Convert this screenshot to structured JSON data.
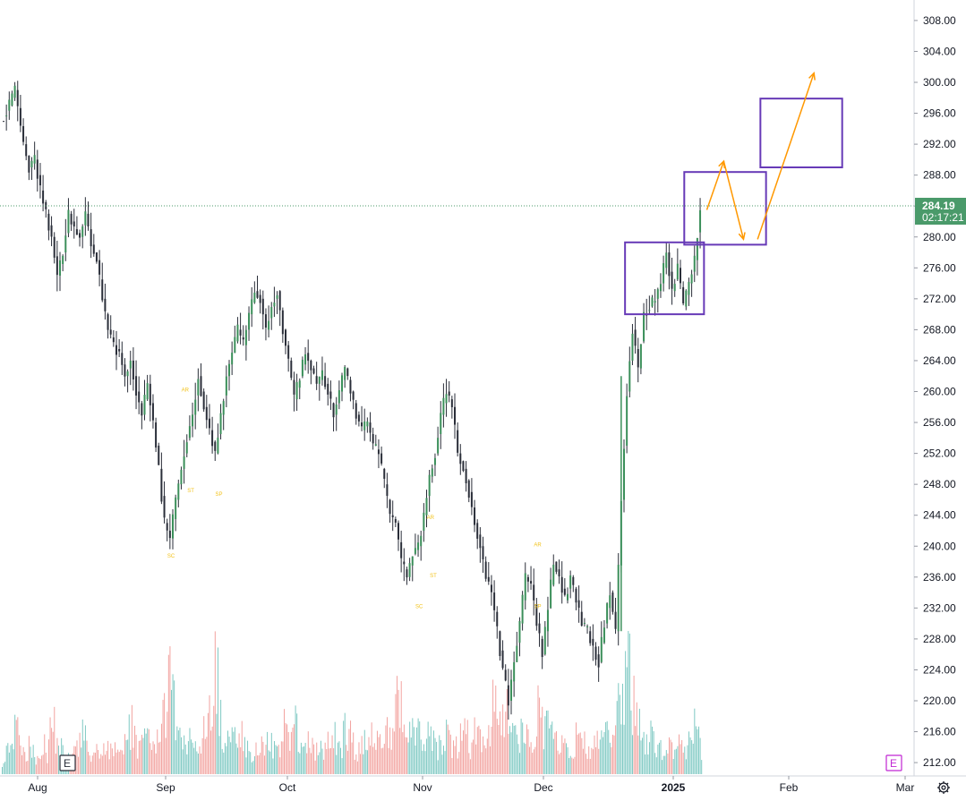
{
  "chart_data": {
    "type": "candlestick",
    "price_axis": {
      "range": [
        210,
        310
      ],
      "ticks": [
        "308.00",
        "304.00",
        "300.00",
        "296.00",
        "292.00",
        "288.00",
        "284.00",
        "280.00",
        "276.00",
        "272.00",
        "268.00",
        "264.00",
        "260.00",
        "256.00",
        "252.00",
        "248.00",
        "244.00",
        "240.00",
        "236.00",
        "232.00",
        "228.00",
        "224.00",
        "220.00",
        "216.00",
        "212.00"
      ],
      "tick_values": [
        308,
        304,
        300,
        296,
        292,
        288,
        284,
        280,
        276,
        272,
        268,
        264,
        260,
        256,
        252,
        248,
        244,
        240,
        236,
        232,
        228,
        224,
        220,
        216,
        212
      ]
    },
    "time_axis": {
      "labels": [
        "Aug",
        "Sep",
        "Oct",
        "Nov",
        "Dec",
        "2025",
        "Feb",
        "Mar"
      ],
      "bold_label": "2025"
    },
    "last_price": {
      "value": 284.19,
      "label": "284.19",
      "countdown": "02:17:21",
      "color": "#4a9a6a"
    },
    "price_series": [
      {
        "t": 0,
        "p": 295
      },
      {
        "t": 3,
        "p": 297
      },
      {
        "t": 5,
        "p": 299
      },
      {
        "t": 8,
        "p": 292
      },
      {
        "t": 10,
        "p": 289
      },
      {
        "t": 12,
        "p": 290
      },
      {
        "t": 14,
        "p": 286
      },
      {
        "t": 16,
        "p": 283
      },
      {
        "t": 18,
        "p": 280
      },
      {
        "t": 20,
        "p": 275
      },
      {
        "t": 22,
        "p": 278
      },
      {
        "t": 24,
        "p": 283
      },
      {
        "t": 26,
        "p": 281
      },
      {
        "t": 28,
        "p": 280
      },
      {
        "t": 30,
        "p": 283
      },
      {
        "t": 32,
        "p": 279
      },
      {
        "t": 34,
        "p": 277
      },
      {
        "t": 36,
        "p": 272
      },
      {
        "t": 38,
        "p": 268
      },
      {
        "t": 40,
        "p": 266
      },
      {
        "t": 42,
        "p": 265
      },
      {
        "t": 44,
        "p": 262
      },
      {
        "t": 46,
        "p": 264
      },
      {
        "t": 48,
        "p": 260
      },
      {
        "t": 50,
        "p": 257
      },
      {
        "t": 52,
        "p": 261
      },
      {
        "t": 54,
        "p": 256
      },
      {
        "t": 56,
        "p": 250
      },
      {
        "t": 58,
        "p": 243
      },
      {
        "t": 60,
        "p": 241
      },
      {
        "t": 62,
        "p": 246
      },
      {
        "t": 64,
        "p": 250
      },
      {
        "t": 66,
        "p": 254
      },
      {
        "t": 68,
        "p": 257
      },
      {
        "t": 70,
        "p": 262
      },
      {
        "t": 72,
        "p": 258
      },
      {
        "t": 74,
        "p": 255
      },
      {
        "t": 76,
        "p": 252
      },
      {
        "t": 78,
        "p": 257
      },
      {
        "t": 80,
        "p": 262
      },
      {
        "t": 82,
        "p": 265
      },
      {
        "t": 84,
        "p": 268
      },
      {
        "t": 86,
        "p": 266
      },
      {
        "t": 88,
        "p": 270
      },
      {
        "t": 90,
        "p": 273
      },
      {
        "t": 92,
        "p": 272
      },
      {
        "t": 94,
        "p": 268
      },
      {
        "t": 96,
        "p": 271
      },
      {
        "t": 98,
        "p": 273
      },
      {
        "t": 100,
        "p": 268
      },
      {
        "t": 102,
        "p": 264
      },
      {
        "t": 104,
        "p": 259
      },
      {
        "t": 106,
        "p": 262
      },
      {
        "t": 108,
        "p": 265
      },
      {
        "t": 110,
        "p": 263
      },
      {
        "t": 112,
        "p": 261
      },
      {
        "t": 114,
        "p": 262
      },
      {
        "t": 116,
        "p": 260
      },
      {
        "t": 118,
        "p": 257
      },
      {
        "t": 120,
        "p": 260
      },
      {
        "t": 122,
        "p": 263
      },
      {
        "t": 124,
        "p": 260
      },
      {
        "t": 126,
        "p": 257
      },
      {
        "t": 128,
        "p": 255
      },
      {
        "t": 130,
        "p": 256
      },
      {
        "t": 132,
        "p": 253
      },
      {
        "t": 134,
        "p": 252
      },
      {
        "t": 136,
        "p": 248
      },
      {
        "t": 138,
        "p": 244
      },
      {
        "t": 140,
        "p": 243
      },
      {
        "t": 142,
        "p": 238
      },
      {
        "t": 144,
        "p": 236
      },
      {
        "t": 146,
        "p": 239
      },
      {
        "t": 148,
        "p": 240
      },
      {
        "t": 150,
        "p": 244
      },
      {
        "t": 152,
        "p": 249
      },
      {
        "t": 154,
        "p": 252
      },
      {
        "t": 156,
        "p": 257
      },
      {
        "t": 158,
        "p": 260
      },
      {
        "t": 160,
        "p": 258
      },
      {
        "t": 162,
        "p": 252
      },
      {
        "t": 164,
        "p": 250
      },
      {
        "t": 166,
        "p": 247
      },
      {
        "t": 168,
        "p": 243
      },
      {
        "t": 170,
        "p": 240
      },
      {
        "t": 172,
        "p": 236
      },
      {
        "t": 174,
        "p": 234
      },
      {
        "t": 176,
        "p": 229
      },
      {
        "t": 178,
        "p": 224
      },
      {
        "t": 180,
        "p": 220
      },
      {
        "t": 182,
        "p": 225
      },
      {
        "t": 184,
        "p": 230
      },
      {
        "t": 186,
        "p": 236
      },
      {
        "t": 188,
        "p": 235
      },
      {
        "t": 190,
        "p": 230
      },
      {
        "t": 192,
        "p": 226
      },
      {
        "t": 194,
        "p": 232
      },
      {
        "t": 196,
        "p": 238
      },
      {
        "t": 198,
        "p": 236
      },
      {
        "t": 200,
        "p": 233
      },
      {
        "t": 202,
        "p": 236
      },
      {
        "t": 204,
        "p": 233
      },
      {
        "t": 206,
        "p": 230
      },
      {
        "t": 208,
        "p": 229
      },
      {
        "t": 210,
        "p": 227
      },
      {
        "t": 212,
        "p": 225
      },
      {
        "t": 214,
        "p": 230
      },
      {
        "t": 216,
        "p": 234
      },
      {
        "t": 218,
        "p": 229
      },
      {
        "t": 220,
        "p": 246
      },
      {
        "t": 222,
        "p": 260
      },
      {
        "t": 224,
        "p": 268
      },
      {
        "t": 226,
        "p": 263
      },
      {
        "t": 228,
        "p": 270
      },
      {
        "t": 230,
        "p": 271
      },
      {
        "t": 232,
        "p": 272
      },
      {
        "t": 234,
        "p": 274
      },
      {
        "t": 236,
        "p": 278
      },
      {
        "t": 238,
        "p": 273
      },
      {
        "t": 240,
        "p": 276
      },
      {
        "t": 242,
        "p": 271
      },
      {
        "t": 244,
        "p": 274
      },
      {
        "t": 246,
        "p": 277
      },
      {
        "t": 248,
        "p": 284.19
      }
    ],
    "volume_series": [
      {
        "t": 0,
        "v": 20
      },
      {
        "t": 3,
        "v": 36
      },
      {
        "t": 5,
        "v": 66
      },
      {
        "t": 8,
        "v": 30
      },
      {
        "t": 10,
        "v": 42
      },
      {
        "t": 12,
        "v": 22
      },
      {
        "t": 14,
        "v": 46
      },
      {
        "t": 16,
        "v": 28
      },
      {
        "t": 18,
        "v": 70
      },
      {
        "t": 20,
        "v": 40
      },
      {
        "t": 22,
        "v": 25
      },
      {
        "t": 24,
        "v": 18
      },
      {
        "t": 26,
        "v": 30
      },
      {
        "t": 28,
        "v": 44
      },
      {
        "t": 30,
        "v": 58
      },
      {
        "t": 32,
        "v": 25
      },
      {
        "t": 34,
        "v": 28
      },
      {
        "t": 36,
        "v": 35
      },
      {
        "t": 38,
        "v": 40
      },
      {
        "t": 40,
        "v": 48
      },
      {
        "t": 42,
        "v": 30
      },
      {
        "t": 44,
        "v": 36
      },
      {
        "t": 46,
        "v": 70
      },
      {
        "t": 48,
        "v": 25
      },
      {
        "t": 50,
        "v": 40
      },
      {
        "t": 52,
        "v": 45
      },
      {
        "t": 54,
        "v": 28
      },
      {
        "t": 56,
        "v": 60
      },
      {
        "t": 58,
        "v": 95
      },
      {
        "t": 60,
        "v": 130
      },
      {
        "t": 62,
        "v": 50
      },
      {
        "t": 64,
        "v": 35
      },
      {
        "t": 66,
        "v": 45
      },
      {
        "t": 68,
        "v": 32
      },
      {
        "t": 70,
        "v": 28
      },
      {
        "t": 72,
        "v": 60
      },
      {
        "t": 74,
        "v": 80
      },
      {
        "t": 76,
        "v": 150
      },
      {
        "t": 78,
        "v": 40
      },
      {
        "t": 80,
        "v": 38
      },
      {
        "t": 82,
        "v": 50
      },
      {
        "t": 84,
        "v": 45
      },
      {
        "t": 86,
        "v": 52
      },
      {
        "t": 88,
        "v": 30
      },
      {
        "t": 90,
        "v": 34
      },
      {
        "t": 92,
        "v": 55
      },
      {
        "t": 94,
        "v": 40
      },
      {
        "t": 96,
        "v": 35
      },
      {
        "t": 98,
        "v": 42
      },
      {
        "t": 100,
        "v": 60
      },
      {
        "t": 102,
        "v": 45
      },
      {
        "t": 104,
        "v": 70
      },
      {
        "t": 106,
        "v": 35
      },
      {
        "t": 108,
        "v": 42
      },
      {
        "t": 110,
        "v": 35
      },
      {
        "t": 112,
        "v": 28
      },
      {
        "t": 114,
        "v": 30
      },
      {
        "t": 116,
        "v": 40
      },
      {
        "t": 118,
        "v": 50
      },
      {
        "t": 120,
        "v": 30
      },
      {
        "t": 122,
        "v": 65
      },
      {
        "t": 124,
        "v": 40
      },
      {
        "t": 126,
        "v": 28
      },
      {
        "t": 128,
        "v": 35
      },
      {
        "t": 130,
        "v": 60
      },
      {
        "t": 132,
        "v": 45
      },
      {
        "t": 134,
        "v": 40
      },
      {
        "t": 136,
        "v": 55
      },
      {
        "t": 138,
        "v": 40
      },
      {
        "t": 140,
        "v": 105
      },
      {
        "t": 142,
        "v": 85
      },
      {
        "t": 144,
        "v": 60
      },
      {
        "t": 146,
        "v": 48
      },
      {
        "t": 148,
        "v": 70
      },
      {
        "t": 150,
        "v": 40
      },
      {
        "t": 152,
        "v": 55
      },
      {
        "t": 154,
        "v": 35
      },
      {
        "t": 156,
        "v": 40
      },
      {
        "t": 158,
        "v": 50
      },
      {
        "t": 160,
        "v": 30
      },
      {
        "t": 162,
        "v": 45
      },
      {
        "t": 164,
        "v": 55
      },
      {
        "t": 166,
        "v": 40
      },
      {
        "t": 168,
        "v": 65
      },
      {
        "t": 170,
        "v": 40
      },
      {
        "t": 172,
        "v": 60
      },
      {
        "t": 174,
        "v": 85
      },
      {
        "t": 176,
        "v": 70
      },
      {
        "t": 178,
        "v": 60
      },
      {
        "t": 180,
        "v": 90
      },
      {
        "t": 182,
        "v": 45
      },
      {
        "t": 184,
        "v": 50
      },
      {
        "t": 186,
        "v": 55
      },
      {
        "t": 188,
        "v": 35
      },
      {
        "t": 190,
        "v": 85
      },
      {
        "t": 192,
        "v": 50
      },
      {
        "t": 194,
        "v": 60
      },
      {
        "t": 196,
        "v": 40
      },
      {
        "t": 198,
        "v": 35
      },
      {
        "t": 200,
        "v": 45
      },
      {
        "t": 202,
        "v": 30
      },
      {
        "t": 204,
        "v": 55
      },
      {
        "t": 206,
        "v": 40
      },
      {
        "t": 208,
        "v": 30
      },
      {
        "t": 210,
        "v": 35
      },
      {
        "t": 212,
        "v": 40
      },
      {
        "t": 214,
        "v": 60
      },
      {
        "t": 216,
        "v": 45
      },
      {
        "t": 218,
        "v": 90
      },
      {
        "t": 220,
        "v": 120
      },
      {
        "t": 222,
        "v": 130
      },
      {
        "t": 224,
        "v": 100
      },
      {
        "t": 226,
        "v": 60
      },
      {
        "t": 228,
        "v": 40
      },
      {
        "t": 230,
        "v": 48
      },
      {
        "t": 232,
        "v": 30
      },
      {
        "t": 234,
        "v": 35
      },
      {
        "t": 236,
        "v": 42
      },
      {
        "t": 238,
        "v": 28
      },
      {
        "t": 240,
        "v": 35
      },
      {
        "t": 242,
        "v": 30
      },
      {
        "t": 244,
        "v": 40
      },
      {
        "t": 246,
        "v": 80
      },
      {
        "t": 248,
        "v": 35
      }
    ],
    "markers": [
      {
        "label": "SC",
        "t": 60,
        "price": 238.5
      },
      {
        "label": "AR",
        "t": 65,
        "price": 260
      },
      {
        "label": "ST",
        "t": 67,
        "price": 247
      },
      {
        "label": "SP",
        "t": 77,
        "price": 246.5
      },
      {
        "label": "SC",
        "t": 148,
        "price": 232
      },
      {
        "label": "ST",
        "t": 153,
        "price": 236
      },
      {
        "label": "AR",
        "t": 152,
        "price": 243.5
      },
      {
        "label": "AR",
        "t": 190,
        "price": 240
      },
      {
        "label": "SP",
        "t": 190,
        "price": 232
      }
    ],
    "boxes": [
      {
        "name": "box-1",
        "t0": 221,
        "t1": 249,
        "p_low": 270,
        "p_high": 279.3
      },
      {
        "name": "box-2",
        "t0": 242,
        "t1": 271,
        "p_low": 279,
        "p_high": 288.4
      },
      {
        "name": "box-3",
        "t0": 269,
        "t1": 298,
        "p_low": 289,
        "p_high": 297.9
      }
    ],
    "arrows": [
      {
        "name": "arrow-up-1",
        "from": {
          "t": 250,
          "p": 283.5
        },
        "to": {
          "t": 256,
          "p": 289.8
        }
      },
      {
        "name": "arrow-down",
        "from": {
          "t": 256,
          "p": 289.8
        },
        "to": {
          "t": 263,
          "p": 279.7
        }
      },
      {
        "name": "arrow-up-2",
        "from": {
          "t": 268,
          "p": 279.7
        },
        "to": {
          "t": 288,
          "p": 301.2
        }
      }
    ],
    "colors": {
      "up": "#26a69a",
      "down": "#ef5350",
      "candle": "#2a2e39",
      "volume_up": "#7fc9c3",
      "volume_down": "#f2a3a0",
      "box": "#673ab7",
      "arrow": "#ff9800",
      "marker": "#f2c21b"
    },
    "badges": [
      {
        "name": "earnings-badge-left",
        "label": "E",
        "t": 24
      },
      {
        "name": "earnings-badge-right",
        "label": "E",
        "t": 316
      }
    ]
  },
  "toolbar": {
    "settings_icon": "gear-icon"
  }
}
